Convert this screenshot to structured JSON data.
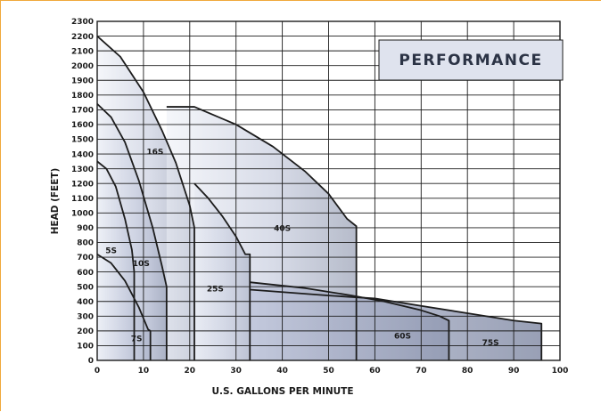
{
  "chart_data": {
    "type": "area",
    "title": "PERFORMANCE",
    "xlabel": "U.S. GALLONS PER MINUTE",
    "ylabel": "HEAD (FEET)",
    "xlim": [
      0,
      100
    ],
    "ylim": [
      0,
      2300
    ],
    "x_ticks": [
      0,
      10,
      20,
      30,
      40,
      50,
      60,
      70,
      80,
      90,
      100
    ],
    "y_ticks": [
      0,
      100,
      200,
      300,
      400,
      500,
      600,
      700,
      800,
      900,
      1000,
      1100,
      1200,
      1300,
      1400,
      1500,
      1600,
      1700,
      1800,
      1900,
      2000,
      2100,
      2200,
      2300
    ],
    "grid": true,
    "colors": {
      "grid": "#1c1c1c",
      "curve": "#1c1c1c",
      "fill_light": "#eceff6",
      "fill_mid": "#b9c0d6",
      "fill_dark": "#7a849f",
      "title_box": "#dfe3ee",
      "title_text": "#2b3345",
      "frame": "#f0a93b"
    },
    "series": [
      {
        "name": "5S",
        "points": [
          [
            0,
            1350
          ],
          [
            2,
            1300
          ],
          [
            4,
            1180
          ],
          [
            6,
            960
          ],
          [
            7.5,
            750
          ],
          [
            8,
            600
          ],
          [
            8,
            0
          ]
        ]
      },
      {
        "name": "7S",
        "points": [
          [
            0,
            720
          ],
          [
            3,
            660
          ],
          [
            6,
            540
          ],
          [
            9,
            360
          ],
          [
            11,
            210
          ],
          [
            11.5,
            200
          ],
          [
            11.5,
            0
          ]
        ]
      },
      {
        "name": "10S",
        "points": [
          [
            0,
            1740
          ],
          [
            3,
            1650
          ],
          [
            6,
            1480
          ],
          [
            9,
            1220
          ],
          [
            12,
            900
          ],
          [
            14,
            640
          ],
          [
            15,
            500
          ],
          [
            15,
            0
          ]
        ]
      },
      {
        "name": "16S",
        "points": [
          [
            0,
            2200
          ],
          [
            5,
            2060
          ],
          [
            10,
            1820
          ],
          [
            14,
            1560
          ],
          [
            17,
            1340
          ],
          [
            20,
            1050
          ],
          [
            21,
            900
          ],
          [
            21,
            0
          ]
        ]
      },
      {
        "name": "25S",
        "points": [
          [
            21,
            1200
          ],
          [
            24,
            1100
          ],
          [
            27,
            980
          ],
          [
            30,
            840
          ],
          [
            32,
            720
          ],
          [
            33,
            720
          ],
          [
            33,
            0
          ]
        ]
      },
      {
        "name": "40S",
        "points": [
          [
            15,
            1720
          ],
          [
            21,
            1720
          ],
          [
            30,
            1600
          ],
          [
            38,
            1450
          ],
          [
            45,
            1280
          ],
          [
            50,
            1130
          ],
          [
            54,
            960
          ],
          [
            56,
            910
          ],
          [
            56,
            0
          ]
        ]
      },
      {
        "name": "60S",
        "points": [
          [
            33,
            530
          ],
          [
            45,
            490
          ],
          [
            55,
            440
          ],
          [
            62,
            400
          ],
          [
            70,
            340
          ],
          [
            74,
            300
          ],
          [
            76,
            270
          ],
          [
            76,
            0
          ]
        ]
      },
      {
        "name": "75S",
        "points": [
          [
            33,
            480
          ],
          [
            50,
            440
          ],
          [
            60,
            420
          ],
          [
            70,
            370
          ],
          [
            80,
            320
          ],
          [
            90,
            270
          ],
          [
            96,
            250
          ],
          [
            96,
            0
          ]
        ]
      }
    ],
    "labels": [
      {
        "text": "5S",
        "x": 3,
        "y": 750
      },
      {
        "text": "7S",
        "x": 8.5,
        "y": 150
      },
      {
        "text": "10S",
        "x": 9.5,
        "y": 660
      },
      {
        "text": "16S",
        "x": 12.5,
        "y": 1420
      },
      {
        "text": "25S",
        "x": 25.5,
        "y": 490
      },
      {
        "text": "40S",
        "x": 40,
        "y": 900
      },
      {
        "text": "60S",
        "x": 66,
        "y": 170
      },
      {
        "text": "75S",
        "x": 85,
        "y": 125
      }
    ]
  }
}
